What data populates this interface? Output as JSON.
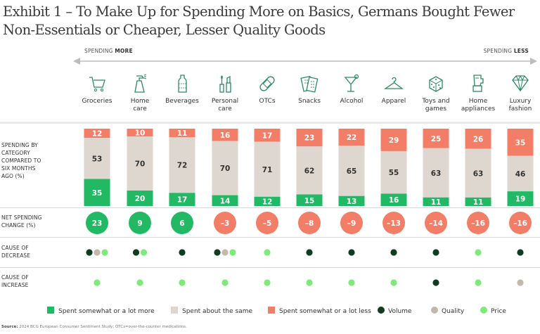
{
  "title": "Exhibit 1 – To Make Up for Spending More on Basics, Germans Bought Fewer Non-Essentials or Cheaper, Lesser Quality Goods",
  "arrow": {
    "left_prefix": "SPENDING ",
    "left_bold": "MORE",
    "right_prefix": "SPENDING ",
    "right_bold": "LESS"
  },
  "row_labels": {
    "spending": [
      "SPENDING BY",
      "CATEGORY",
      "COMPARED TO",
      "SIX MONTHS",
      "AGO (%)"
    ],
    "net": [
      "NET SPENDING",
      "CHANGE (%)"
    ],
    "decrease": [
      "CAUSE OF",
      "DECREASE"
    ],
    "increase": [
      "CAUSE OF",
      "INCREASE"
    ]
  },
  "colors": {
    "more": "#22b965",
    "same": "#ddd7cf",
    "less": "#f27e67",
    "volume": "#0e3d1f",
    "quality": "#c4b9a9",
    "price": "#7eea7a",
    "icon": "#2a8a62"
  },
  "chart_data": {
    "type": "bar",
    "stacked": true,
    "title": "Exhibit 1 – To Make Up for Spending More on Basics, Germans Bought Fewer Non-Essentials or Cheaper, Lesser Quality Goods",
    "categories": [
      [
        "Groceries"
      ],
      [
        "Home",
        "care"
      ],
      [
        "Beverages"
      ],
      [
        "Personal",
        "care"
      ],
      [
        "OTCs"
      ],
      [
        "Snacks"
      ],
      [
        "Alcohol"
      ],
      [
        "Apparel"
      ],
      [
        "Toys and",
        "games"
      ],
      [
        "Home",
        "appliances"
      ],
      [
        "Luxury",
        "fashion"
      ]
    ],
    "category_icons": [
      "cart-icon",
      "spray-bottle-icon",
      "bottle-icon",
      "cosmetics-icon",
      "bandage-icon",
      "snack-box-icon",
      "cocktail-icon",
      "hanger-icon",
      "dice-icon",
      "blender-icon",
      "diamond-icon"
    ],
    "series": [
      {
        "name": "Spent somewhat or a lot more",
        "key": "more",
        "values": [
          35,
          20,
          17,
          14,
          12,
          15,
          13,
          16,
          11,
          11,
          19
        ]
      },
      {
        "name": "Spent about the same",
        "key": "same",
        "values": [
          53,
          70,
          72,
          70,
          71,
          62,
          65,
          55,
          63,
          63,
          46
        ]
      },
      {
        "name": "Spent somewhat or a lot less",
        "key": "less",
        "values": [
          12,
          10,
          11,
          16,
          17,
          23,
          22,
          29,
          25,
          26,
          35
        ]
      }
    ],
    "net_spending_change": [
      23,
      9,
      6,
      -3,
      -5,
      -8,
      -9,
      -13,
      -14,
      -16,
      -16
    ],
    "net_labels": [
      "23",
      "9",
      "6",
      "–3",
      "–5",
      "–8",
      "–9",
      "–13",
      "–14",
      "–16",
      "–16"
    ],
    "cause_of_decrease": [
      [
        "volume",
        "quality",
        "price"
      ],
      [
        "volume",
        "price"
      ],
      [
        "volume"
      ],
      [
        "volume",
        "quality",
        "price"
      ],
      [
        "price"
      ],
      [
        "volume"
      ],
      [
        "volume"
      ],
      [
        "volume"
      ],
      [
        "volume"
      ],
      [
        "price"
      ],
      [
        "volume"
      ]
    ],
    "cause_of_increase": [
      [
        "price"
      ],
      [
        "price"
      ],
      [
        "price"
      ],
      [
        "price"
      ],
      [
        "price"
      ],
      [
        "price"
      ],
      [
        "price"
      ],
      [
        "price"
      ],
      [
        "volume"
      ],
      [
        "price"
      ],
      [
        "quality"
      ]
    ],
    "ylabel": "SPENDING BY CATEGORY COMPARED TO SIX MONTHS AGO (%)",
    "ylim": [
      0,
      100
    ],
    "grid": false,
    "legend_position": "bottom"
  },
  "legend": [
    {
      "label": "Spent somewhat or a lot more",
      "shape": "square",
      "color_key": "more"
    },
    {
      "label": "Spent about the same",
      "shape": "square",
      "color_key": "same"
    },
    {
      "label": "Spent somewhat or a lot less",
      "shape": "square",
      "color_key": "less"
    },
    {
      "label": "Volume",
      "shape": "circle",
      "color_key": "volume"
    },
    {
      "label": "Quality",
      "shape": "circle",
      "color_key": "quality"
    },
    {
      "label": "Price",
      "shape": "circle",
      "color_key": "price"
    }
  ],
  "source": {
    "prefix": "Source:",
    "text": " 2024 BCG European Consumer Sentiment Study; OTCs=over-the-counter medications."
  }
}
